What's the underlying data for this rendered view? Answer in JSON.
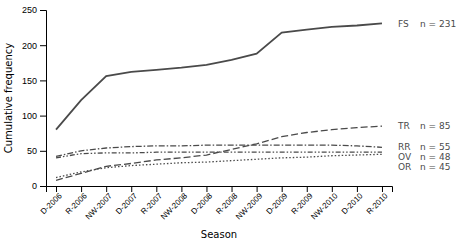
{
  "chart_data": {
    "type": "line",
    "categories": [
      "D-2006",
      "R-2006",
      "NW-2007",
      "D-2007",
      "R-2007",
      "NW-2008",
      "D-2008",
      "R-2008",
      "NW-2009",
      "D-2009",
      "R-2009",
      "NW-2010",
      "D-2010",
      "R-2010"
    ],
    "series": [
      {
        "name": "FS",
        "values": [
          80,
          122,
          156,
          162,
          165,
          168,
          172,
          179,
          188,
          218,
          222,
          226,
          228,
          231
        ],
        "line_style": "solid",
        "annotation": "n = 231"
      },
      {
        "name": "TR",
        "values": [
          8,
          18,
          28,
          32,
          37,
          40,
          44,
          52,
          60,
          70,
          76,
          80,
          83,
          85
        ],
        "line_style": "dashed",
        "annotation": "n = 85"
      },
      {
        "name": "RR",
        "values": [
          42,
          50,
          54,
          56,
          57,
          57,
          58,
          58,
          58,
          58,
          58,
          58,
          57,
          55
        ],
        "line_style": "dashdot",
        "annotation": "n = 55"
      },
      {
        "name": "OV",
        "values": [
          40,
          46,
          47,
          47,
          48,
          48,
          48,
          48,
          48,
          48,
          48,
          48,
          48,
          48
        ],
        "line_style": "dashdotdot",
        "annotation": "n = 48"
      },
      {
        "name": "OR",
        "values": [
          12,
          20,
          26,
          29,
          31,
          33,
          34,
          36,
          38,
          40,
          41,
          43,
          44,
          45
        ],
        "line_style": "dotted",
        "annotation": "n = 45"
      }
    ],
    "color": "#4a4a4a",
    "xlabel": "Season",
    "ylabel": "Cumulative frequency",
    "ylim": [
      0,
      250
    ],
    "yticks": [
      0,
      50,
      100,
      150,
      200,
      250
    ],
    "grid": false
  }
}
